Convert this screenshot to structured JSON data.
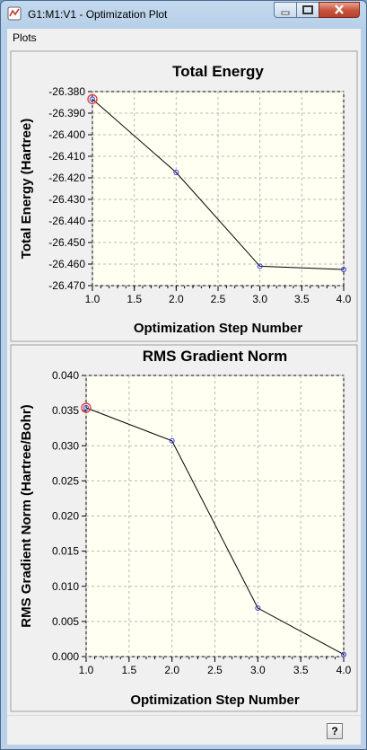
{
  "window": {
    "title": "G1:M1:V1 - Optimization Plot"
  },
  "menu": {
    "plots_label": "Plots"
  },
  "statusbar": {
    "help_label": "?"
  },
  "chart_data": [
    {
      "type": "line",
      "title": "Total Energy",
      "xlabel": "Optimization Step Number",
      "ylabel": "Total Energy (Hartree)",
      "x": [
        1,
        2,
        3,
        4
      ],
      "values": [
        -26.3835,
        -26.4175,
        -26.461,
        -26.4625
      ],
      "xlim": [
        1.0,
        4.0
      ],
      "ylim": [
        -26.47,
        -26.38
      ],
      "xticks": [
        "1.0",
        "1.5",
        "2.0",
        "2.5",
        "3.0",
        "3.5",
        "4.0"
      ],
      "yticks": [
        "-26.380",
        "-26.390",
        "-26.400",
        "-26.410",
        "-26.420",
        "-26.430",
        "-26.440",
        "-26.450",
        "-26.460",
        "-26.470"
      ],
      "grid": true,
      "highlighted_point": 1,
      "colors": {
        "line": "#000000",
        "marker": "#3a3ae0",
        "highlight": "#e04040",
        "plot_bg": "#fffff2"
      }
    },
    {
      "type": "line",
      "title": "RMS Gradient Norm",
      "xlabel": "Optimization Step Number",
      "ylabel": "RMS Gradient Norm (Hartree/Bohr)",
      "x": [
        1,
        2,
        3,
        4
      ],
      "values": [
        0.0354,
        0.0307,
        0.0069,
        0.0003
      ],
      "xlim": [
        1.0,
        4.0
      ],
      "ylim": [
        0.0,
        0.04
      ],
      "xticks": [
        "1.0",
        "1.5",
        "2.0",
        "2.5",
        "3.0",
        "3.5",
        "4.0"
      ],
      "yticks": [
        "0.040",
        "0.035",
        "0.030",
        "0.025",
        "0.020",
        "0.015",
        "0.010",
        "0.005",
        "0.000"
      ],
      "grid": true,
      "highlighted_point": 1,
      "colors": {
        "line": "#000000",
        "marker": "#3a3ae0",
        "highlight": "#e04040",
        "plot_bg": "#fffff2"
      }
    }
  ]
}
